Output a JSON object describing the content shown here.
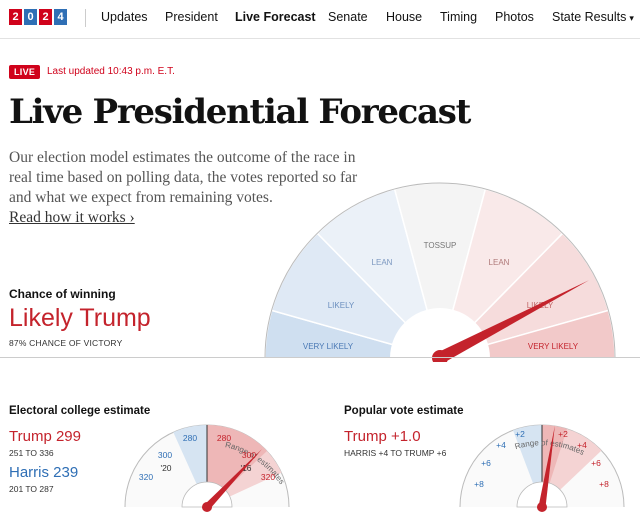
{
  "logo": {
    "digits": [
      "2",
      "0",
      "2",
      "4"
    ]
  },
  "nav": {
    "items": [
      "Updates",
      "President",
      "Live Forecast",
      "Senate",
      "House",
      "Timing",
      "Photos",
      "State Results"
    ],
    "active": "Live Forecast"
  },
  "status": {
    "live_badge": "LIVE",
    "updated": "Last updated 10:43 p.m. E.T."
  },
  "page": {
    "title": "Live Presidential Forecast",
    "intro": "Our election model estimates the outcome of the race in real time based on polling data, the votes reported so far and what we expect from remaining votes.",
    "read_link": "Read how it works ›"
  },
  "chance": {
    "label": "Chance of winning",
    "value": "Likely Trump",
    "sub": "87% CHANCE OF VICTORY",
    "gauge_labels": [
      "VERY LIKELY",
      "LIKELY",
      "LEAN",
      "TOSSUP",
      "LEAN",
      "LIKELY",
      "VERY LIKELY"
    ],
    "trump_probability": 0.87
  },
  "electoral": {
    "title": "Electoral college estimate",
    "trump": "Trump 299",
    "trump_range": "251 TO 336",
    "harris": "Harris 239",
    "harris_range": "201 TO 287",
    "gauge_caption": "Range of estimates",
    "ticks": [
      "320",
      "300",
      "280",
      "280",
      "300",
      "320"
    ],
    "marks": [
      "'20",
      "'16"
    ],
    "trump_value": 299
  },
  "popular": {
    "title": "Popular vote estimate",
    "trump": "Trump +1.0",
    "range": "HARRIS +4 TO TRUMP +6",
    "gauge_caption": "Range of estimates",
    "ticks": [
      "+8",
      "+6",
      "+4",
      "+2",
      "+2",
      "+4",
      "+6",
      "+8"
    ],
    "trump_margin": 1.0
  },
  "colors": {
    "red": "#c4232c",
    "blue": "#2f6fb5",
    "live_red": "#d0021b"
  }
}
